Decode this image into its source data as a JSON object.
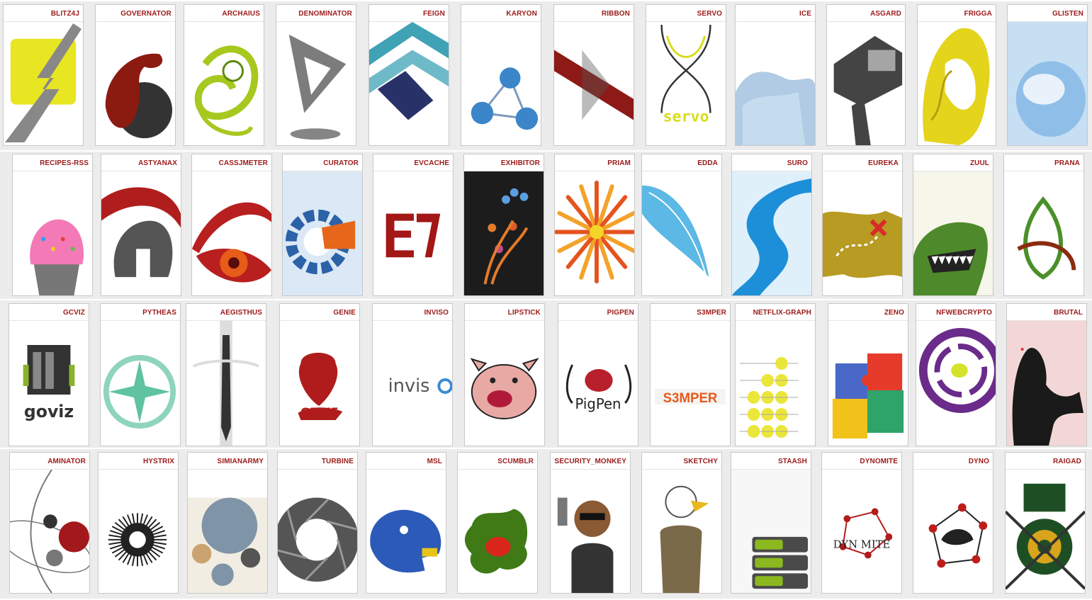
{
  "rows": [
    {
      "cards": [
        {
          "label": "BLITZ4J",
          "icon": "lightning-bolt-icon",
          "accent": "#e8e622",
          "accent2": "#888888",
          "style": "bolt"
        },
        {
          "label": "GOVERNATOR",
          "icon": "flexed-arm-icon",
          "accent": "#8b1a10",
          "accent2": "#333333",
          "style": "blob"
        },
        {
          "label": "ARCHAIUS",
          "icon": "chameleon-icon",
          "accent": "#a7c81f",
          "accent2": "#5e8a10",
          "style": "swirl"
        },
        {
          "label": "DENOMINATOR",
          "icon": "triangle-icon",
          "accent": "#7c7c7c",
          "accent2": "#333333",
          "style": "tri"
        },
        {
          "label": "FEIGN",
          "icon": "chevron-stack-icon",
          "accent": "#3fa3b5",
          "accent2": "#283268",
          "style": "chev"
        },
        {
          "label": "KARYON",
          "icon": "molecule-icon",
          "accent": "#3b86c8",
          "accent2": "#7c9ab8",
          "style": "mol"
        },
        {
          "label": "RIBBON",
          "icon": "ribbon-banner-icon",
          "accent": "#8e1a17",
          "accent2": "#555555",
          "style": "ribbon"
        },
        {
          "label": "SERVO",
          "icon": "servo-wordmark-icon",
          "accent": "#d8dd1c",
          "accent2": "#333333",
          "style": "servo",
          "word": "servo"
        },
        {
          "label": "ICE",
          "icon": "ice-cloak-icon",
          "accent": "#6fa1cc",
          "accent2": "#c4dcee",
          "style": "cloud"
        },
        {
          "label": "ASGARD",
          "icon": "hammer-icon",
          "accent": "#444444",
          "accent2": "#cfcfcf",
          "style": "hammer"
        },
        {
          "label": "FRIGGA",
          "icon": "goddess-face-icon",
          "accent": "#e4d41c",
          "accent2": "#b59d10",
          "style": "hair"
        },
        {
          "label": "GLISTEN",
          "icon": "glass-lens-icon",
          "accent": "#8fbfe8",
          "accent2": "#ffffff",
          "style": "lens"
        }
      ]
    },
    {
      "cards": [
        {
          "label": "RECIPES-RSS",
          "icon": "cupcake-icon",
          "accent": "#f37ab6",
          "accent2": "#777777",
          "style": "cupcake"
        },
        {
          "label": "ASTYANAX",
          "icon": "spartan-helmet-icon",
          "accent": "#b01d1d",
          "accent2": "#555555",
          "style": "helmet"
        },
        {
          "label": "CASSJMETER",
          "icon": "eye-icon",
          "accent": "#b81f1f",
          "accent2": "#e65c18",
          "style": "eye"
        },
        {
          "label": "CURATOR",
          "icon": "gear-icon",
          "accent": "#2b62a8",
          "accent2": "#e6671a",
          "style": "gear"
        },
        {
          "label": "EVCACHE",
          "icon": "evcache-logo-icon",
          "accent": "#a31717",
          "accent2": "#ffffff",
          "style": "ev",
          "word": "EV"
        },
        {
          "label": "EXHIBITOR",
          "icon": "fountain-icon",
          "accent": "#1c1c1c",
          "accent2": "#e37b2b",
          "style": "fount"
        },
        {
          "label": "PRIAM",
          "icon": "sunburst-icon",
          "accent": "#e4541c",
          "accent2": "#f4a22a",
          "style": "sun"
        },
        {
          "label": "EDDA",
          "icon": "feather-icon",
          "accent": "#5cb8e4",
          "accent2": "#cfeaf6",
          "style": "feather"
        },
        {
          "label": "SURO",
          "icon": "data-stream-icon",
          "accent": "#1d8fd8",
          "accent2": "#dff0fb",
          "style": "stream"
        },
        {
          "label": "EUREKA",
          "icon": "treasure-map-icon",
          "accent": "#b79b22",
          "accent2": "#d82a2a",
          "style": "map"
        },
        {
          "label": "ZUUL",
          "icon": "monster-icon",
          "accent": "#4e8a2c",
          "accent2": "#222222",
          "style": "monster"
        },
        {
          "label": "PRANA",
          "icon": "trefoil-icon",
          "accent": "#4b8f28",
          "accent2": "#8a2c10",
          "style": "trefoil"
        }
      ]
    },
    {
      "cards": [
        {
          "label": "GCVIZ",
          "icon": "trash-can-icon",
          "accent": "#8ab22a",
          "accent2": "#333333",
          "style": "gcviz",
          "word": "goviz"
        },
        {
          "label": "PYTHEAS",
          "icon": "compass-rose-icon",
          "accent": "#5fc2a0",
          "accent2": "#e0f2ea",
          "style": "compass"
        },
        {
          "label": "AEGISTHUS",
          "icon": "sword-icon",
          "accent": "#333333",
          "accent2": "#dddddd",
          "style": "sword"
        },
        {
          "label": "GENIE",
          "icon": "genie-lamp-icon",
          "accent": "#b01c1c",
          "accent2": "#ffffff",
          "style": "genie",
          "word": "GENIE"
        },
        {
          "label": "INVISO",
          "icon": "inviso-wordmark-icon",
          "accent": "#555555",
          "accent2": "#3a8ad4",
          "style": "inviso",
          "word": "invis"
        },
        {
          "label": "LIPSTICK",
          "icon": "pig-face-icon",
          "accent": "#e8a9a4",
          "accent2": "#b01a3a",
          "style": "pig"
        },
        {
          "label": "PIGPEN",
          "icon": "pigpen-logo-icon",
          "accent": "#b8202c",
          "accent2": "#222222",
          "style": "pigpen",
          "word": "PigPen"
        },
        {
          "label": "S3MPER",
          "icon": "s3mper-wordmark-icon",
          "accent": "#e85a1a",
          "accent2": "#9a9a9a",
          "style": "s3mper",
          "word": "S3MPER"
        },
        {
          "label": "NETFLIX-GRAPH",
          "icon": "dot-graph-icon",
          "accent": "#ebe63a",
          "accent2": "#aaaaaa",
          "style": "dots"
        },
        {
          "label": "ZENO",
          "icon": "puzzle-icon",
          "accent": "#e63b2a",
          "accent2": "#4a68c8",
          "style": "puzzle"
        },
        {
          "label": "NFWEBCRYPTO",
          "icon": "maze-disc-icon",
          "accent": "#6a2b8a",
          "accent2": "#d6e22a",
          "style": "maze"
        },
        {
          "label": "BRUTAL",
          "icon": "shadow-figure-icon",
          "accent": "#1a1a1a",
          "accent2": "#e5a6a6",
          "style": "shadow"
        }
      ]
    },
    {
      "cards": [
        {
          "label": "AMINATOR",
          "icon": "orbit-icon",
          "accent": "#a3181c",
          "accent2": "#777777",
          "style": "orbit"
        },
        {
          "label": "HYSTRIX",
          "icon": "porcupine-icon",
          "accent": "#222222",
          "accent2": "#ffffff",
          "style": "porcupine"
        },
        {
          "label": "SIMIANARMY",
          "icon": "monkey-army-icon",
          "accent": "#7f94a6",
          "accent2": "#c9a470",
          "style": "army"
        },
        {
          "label": "TURBINE",
          "icon": "aperture-icon",
          "accent": "#555555",
          "accent2": "#ffffff",
          "style": "aperture"
        },
        {
          "label": "MSL",
          "icon": "dragon-head-icon",
          "accent": "#2c5ab8",
          "accent2": "#e8c41a",
          "style": "dragon"
        },
        {
          "label": "SCUMBLR",
          "icon": "crab-splat-icon",
          "accent": "#3f7a16",
          "accent2": "#d8261c",
          "style": "splat"
        },
        {
          "label": "SECURITY_MONKEY",
          "icon": "agent-monkey-icon",
          "accent": "#333333",
          "accent2": "#8a5a34",
          "style": "agent"
        },
        {
          "label": "SKETCHY",
          "icon": "eagle-detective-icon",
          "accent": "#7b6a4a",
          "accent2": "#e8b81e",
          "style": "eagle"
        },
        {
          "label": "STAASH",
          "icon": "server-stack-icon",
          "accent": "#8ab81e",
          "accent2": "#4a4a4a",
          "style": "stack"
        },
        {
          "label": "DYNOMITE",
          "icon": "dynomite-logo-icon",
          "accent": "#b31c1c",
          "accent2": "#222222",
          "style": "dyno",
          "word": "DYN MITE"
        },
        {
          "label": "DYNO",
          "icon": "network-ring-icon",
          "accent": "#c01c1c",
          "accent2": "#222222",
          "style": "ring"
        },
        {
          "label": "RAIGAD",
          "icon": "fortress-shield-icon",
          "accent": "#1e4f24",
          "accent2": "#d8a41c",
          "style": "fort"
        }
      ]
    }
  ]
}
